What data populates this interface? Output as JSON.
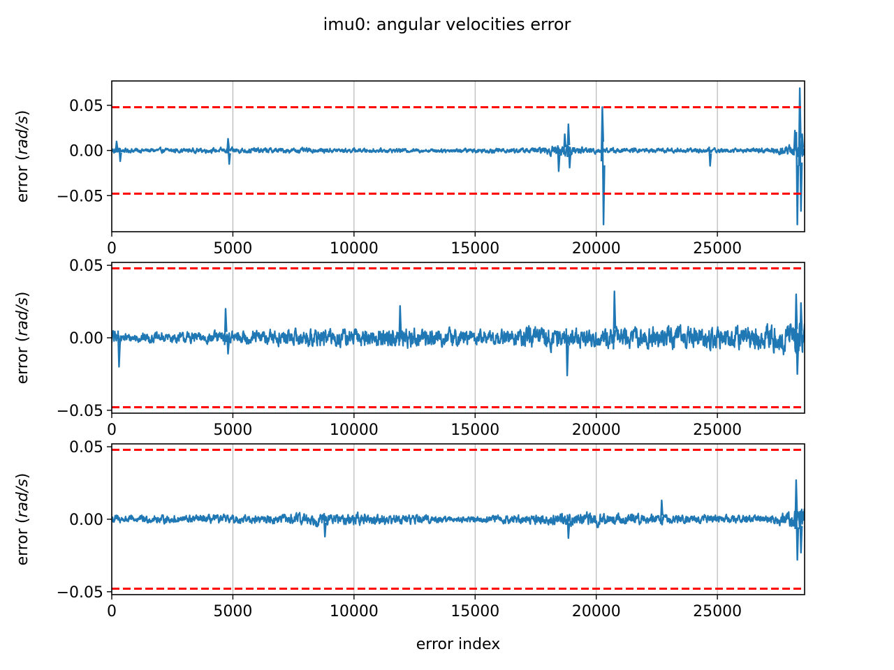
{
  "figure": {
    "title": "imu0: angular velocities error"
  },
  "colors": {
    "series": "#1f77b4",
    "bounds": "#ff0000",
    "grid": "#b0b0b0",
    "axes": "#000000"
  },
  "chart_data": [
    {
      "type": "line",
      "title": "",
      "xlabel": "",
      "ylabel": "error (rad/s)",
      "ylabel_text": "error (",
      "ylabel_unit": "rad/s",
      "ylabel_close": ")",
      "xlim": [
        0,
        28600
      ],
      "ylim": [
        -0.09,
        0.077
      ],
      "x_ticks": [
        0,
        5000,
        10000,
        15000,
        20000,
        25000
      ],
      "x_tick_labels": [
        "0",
        "5000",
        "10000",
        "15000",
        "20000",
        "25000"
      ],
      "y_ticks": [
        -0.05,
        0.0,
        0.05
      ],
      "y_tick_labels": [
        "−0.05",
        "0.00",
        "0.05"
      ],
      "grid": "x",
      "bounds": [
        0.0479,
        -0.0479
      ],
      "noise": [
        [
          0,
          0.004
        ],
        [
          400,
          0.0025
        ],
        [
          4000,
          0.0025
        ],
        [
          5500,
          0.003
        ],
        [
          9000,
          0.0025
        ],
        [
          13000,
          0.002
        ],
        [
          17500,
          0.003
        ],
        [
          18500,
          0.006
        ],
        [
          19200,
          0.004
        ],
        [
          21000,
          0.0025
        ],
        [
          27000,
          0.0025
        ],
        [
          28000,
          0.006
        ],
        [
          28600,
          0.008
        ]
      ],
      "spikes": [
        [
          200,
          0.01
        ],
        [
          350,
          -0.012
        ],
        [
          4800,
          0.013
        ],
        [
          4850,
          -0.015
        ],
        [
          18450,
          -0.023
        ],
        [
          18700,
          0.018
        ],
        [
          18850,
          0.029
        ],
        [
          18900,
          -0.019
        ],
        [
          20250,
          0.048
        ],
        [
          20300,
          -0.082
        ],
        [
          24700,
          -0.017
        ],
        [
          28200,
          0.022
        ],
        [
          28300,
          -0.082
        ],
        [
          28400,
          0.069
        ],
        [
          28450,
          -0.067
        ],
        [
          28500,
          0.018
        ]
      ]
    },
    {
      "type": "line",
      "title": "",
      "xlabel": "",
      "ylabel": "error (rad/s)",
      "ylabel_text": "error (",
      "ylabel_unit": "rad/s",
      "ylabel_close": ")",
      "xlim": [
        0,
        28600
      ],
      "ylim": [
        -0.052,
        0.052
      ],
      "x_ticks": [
        0,
        5000,
        10000,
        15000,
        20000,
        25000
      ],
      "x_tick_labels": [
        "0",
        "5000",
        "10000",
        "15000",
        "20000",
        "25000"
      ],
      "y_ticks": [
        -0.05,
        0.0,
        0.05
      ],
      "y_tick_labels": [
        "−0.05",
        "0.00",
        "0.05"
      ],
      "grid": "x",
      "bounds": [
        0.0479,
        -0.0479
      ],
      "noise": [
        [
          0,
          0.006
        ],
        [
          400,
          0.003
        ],
        [
          4000,
          0.004
        ],
        [
          6000,
          0.005
        ],
        [
          8000,
          0.006
        ],
        [
          10000,
          0.006
        ],
        [
          12000,
          0.007
        ],
        [
          14000,
          0.006
        ],
        [
          16000,
          0.005
        ],
        [
          18000,
          0.008
        ],
        [
          19000,
          0.006
        ],
        [
          22000,
          0.007
        ],
        [
          26000,
          0.008
        ],
        [
          28000,
          0.01
        ],
        [
          28600,
          0.012
        ]
      ],
      "spikes": [
        [
          300,
          -0.02
        ],
        [
          4700,
          0.02
        ],
        [
          4800,
          -0.011
        ],
        [
          11900,
          0.022
        ],
        [
          18800,
          -0.026
        ],
        [
          20750,
          0.032
        ],
        [
          28250,
          0.03
        ],
        [
          28300,
          -0.025
        ],
        [
          28450,
          0.024
        ]
      ]
    },
    {
      "type": "line",
      "title": "",
      "xlabel": "error index",
      "ylabel": "error (rad/s)",
      "ylabel_text": "error (",
      "ylabel_unit": "rad/s",
      "ylabel_close": ")",
      "xlim": [
        0,
        28600
      ],
      "ylim": [
        -0.052,
        0.052
      ],
      "x_ticks": [
        0,
        5000,
        10000,
        15000,
        20000,
        25000
      ],
      "x_tick_labels": [
        "0",
        "5000",
        "10000",
        "15000",
        "20000",
        "25000"
      ],
      "y_ticks": [
        -0.05,
        0.0,
        0.05
      ],
      "y_tick_labels": [
        "−0.05",
        "0.00",
        "0.05"
      ],
      "grid": "x",
      "bounds": [
        0.0479,
        -0.0479
      ],
      "noise": [
        [
          0,
          0.004
        ],
        [
          400,
          0.0025
        ],
        [
          7000,
          0.003
        ],
        [
          7500,
          0.004
        ],
        [
          8800,
          0.004
        ],
        [
          9500,
          0.003
        ],
        [
          10000,
          0.004
        ],
        [
          15000,
          0.002
        ],
        [
          18500,
          0.004
        ],
        [
          19200,
          0.005
        ],
        [
          22000,
          0.003
        ],
        [
          27000,
          0.0025
        ],
        [
          28000,
          0.005
        ],
        [
          28600,
          0.008
        ]
      ],
      "spikes": [
        [
          8800,
          -0.012
        ],
        [
          18850,
          -0.013
        ],
        [
          22700,
          0.013
        ],
        [
          28250,
          0.027
        ],
        [
          28300,
          -0.028
        ],
        [
          28450,
          -0.023
        ]
      ]
    }
  ]
}
